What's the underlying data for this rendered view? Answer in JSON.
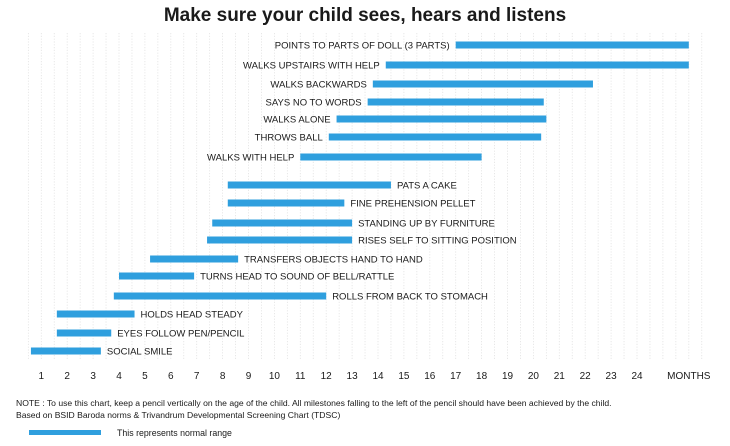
{
  "chart_data": {
    "type": "gantt",
    "title": "Make sure your child sees, hears and listens",
    "x_unit_label": "MONTHS",
    "x_ticks": [
      "1",
      "2",
      "3",
      "4",
      "5",
      "6",
      "7",
      "8",
      "9",
      "10",
      "11",
      "12",
      "13",
      "14",
      "15",
      "16",
      "17",
      "18",
      "19",
      "20",
      "21",
      "22",
      "23",
      "24",
      "MONTHS"
    ],
    "x_tick_values": [
      1,
      2,
      3,
      4,
      5,
      6,
      7,
      8,
      9,
      10,
      11,
      12,
      13,
      14,
      15,
      16,
      17,
      18,
      19,
      20,
      21,
      22,
      23,
      24,
      26
    ],
    "xlim": [
      0.5,
      26.5
    ],
    "grid": true,
    "bar_color": "#2f9fde",
    "milestones": [
      {
        "label": "POINTS TO PARTS OF DOLL (3 PARTS)",
        "start": 17.0,
        "end": 26.0,
        "label_side": "left"
      },
      {
        "label": "WALKS UPSTAIRS WITH HELP",
        "start": 14.3,
        "end": 26.0,
        "label_side": "left"
      },
      {
        "label": "WALKS BACKWARDS",
        "start": 13.8,
        "end": 22.3,
        "label_side": "left"
      },
      {
        "label": "SAYS NO TO WORDS",
        "start": 13.6,
        "end": 20.4,
        "label_side": "left"
      },
      {
        "label": "WALKS  ALONE",
        "start": 12.4,
        "end": 20.5,
        "label_side": "left"
      },
      {
        "label": "THROWS BALL",
        "start": 12.1,
        "end": 20.3,
        "label_side": "left"
      },
      {
        "label": "WALKS WITH HELP",
        "start": 11.0,
        "end": 18.0,
        "label_side": "left"
      },
      {
        "label": "PATS A CAKE",
        "start": 8.2,
        "end": 14.5,
        "label_side": "right"
      },
      {
        "label": "FINE PREHENSION PELLET",
        "start": 8.2,
        "end": 12.7,
        "label_side": "right"
      },
      {
        "label": "STANDING UP BY FURNITURE",
        "start": 7.6,
        "end": 13.0,
        "label_side": "right"
      },
      {
        "label": "RISES SELF TO SITTING POSITION",
        "start": 7.4,
        "end": 13.0,
        "label_side": "right"
      },
      {
        "label": "TRANSFERS OBJECTS HAND TO HAND",
        "start": 5.2,
        "end": 8.6,
        "label_side": "right"
      },
      {
        "label": "TURNS HEAD TO SOUND OF BELL/RATTLE",
        "start": 4.0,
        "end": 6.9,
        "label_side": "right"
      },
      {
        "label": "ROLLS FROM BACK TO STOMACH",
        "start": 3.8,
        "end": 12.0,
        "label_side": "right"
      },
      {
        "label": "HOLDS HEAD STEADY",
        "start": 1.6,
        "end": 4.6,
        "label_side": "right"
      },
      {
        "label": "EYES FOLLOW PEN/PENCIL",
        "start": 1.6,
        "end": 3.7,
        "label_side": "right"
      },
      {
        "label": "SOCIAL SMILE",
        "start": 0.6,
        "end": 3.3,
        "label_side": "right"
      }
    ]
  },
  "note": {
    "line1": "NOTE : To use this chart, keep a pencil vertically on the age of the child. All milestones falling to the left of the pencil should have been achieved by the child.",
    "line2": "Based on BSID Baroda norms & Trivandrum Developmental Screening Chart (TDSC)"
  },
  "legend": {
    "text": "This represents normal range"
  }
}
